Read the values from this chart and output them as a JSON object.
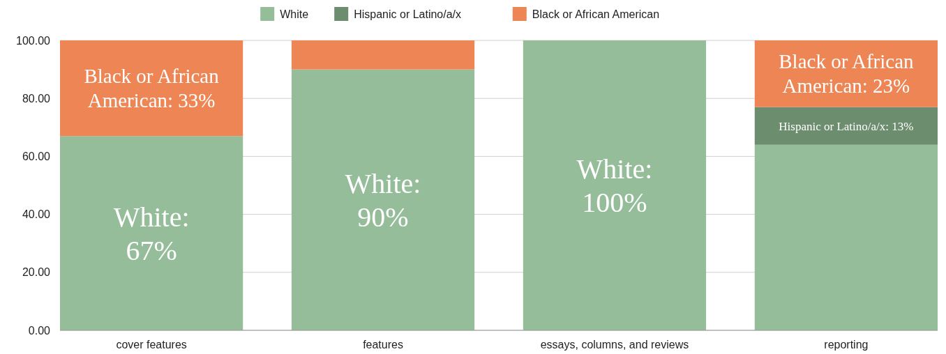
{
  "chart_data": {
    "type": "bar",
    "stacked": true,
    "categories": [
      "cover features",
      "features",
      "essays, columns, and reviews",
      "reporting"
    ],
    "series": [
      {
        "name": "White",
        "color": "#95bd9a",
        "values": [
          67,
          90,
          100,
          64
        ],
        "value_labels": [
          "White: 67%",
          "White: 90%",
          "White: 100%",
          null
        ]
      },
      {
        "name": "Hispanic or Latino/a/x",
        "color": "#6c8e6f",
        "values": [
          null,
          null,
          null,
          13
        ],
        "value_labels": [
          null,
          null,
          null,
          "Hispanic or Latino/a/x: 13%"
        ]
      },
      {
        "name": "Black or African American",
        "color": "#ee8554",
        "values": [
          33,
          10,
          null,
          23
        ],
        "value_labels": [
          "Black or African American: 33%",
          null,
          null,
          "Black or African American: 23%"
        ]
      }
    ],
    "ylim": [
      0,
      100
    ],
    "yticks": [
      {
        "value": 0,
        "label": "0.00"
      },
      {
        "value": 20,
        "label": "20.00"
      },
      {
        "value": 40,
        "label": "40.00"
      },
      {
        "value": 60,
        "label": "60.00"
      },
      {
        "value": 80,
        "label": "80.00"
      },
      {
        "value": 100,
        "label": "100.00"
      }
    ],
    "grid": "y",
    "legend": "top"
  }
}
